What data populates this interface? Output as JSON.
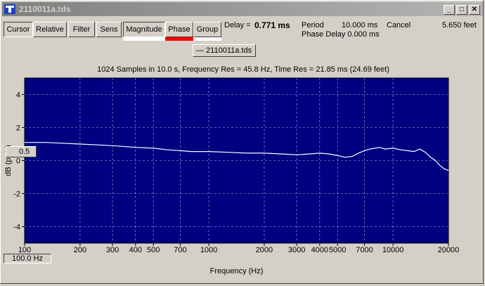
{
  "window": {
    "title": "2110011a.tds",
    "minimize": "_",
    "maximize": "□",
    "close": "✕"
  },
  "toolbar": {
    "buttons": [
      {
        "label": "Cursor"
      },
      {
        "label": "Relative"
      },
      {
        "label": "Filter"
      },
      {
        "label": "Sens"
      },
      {
        "label": "Magnitude"
      },
      {
        "label": "Phase"
      },
      {
        "label": "Group"
      }
    ],
    "indicator_colors": {
      "magnitude": "#ffffff",
      "phase": "#ff0000",
      "group": "#ffffff"
    }
  },
  "readouts": {
    "delay_label": "Delay =",
    "delay_value": "0.771 ms",
    "period_label": "Period",
    "period_value": "10.000 ms",
    "cancel": "Cancel",
    "feet": "5.650 feet",
    "phase_delay": "Phase Delay 0.000 ms"
  },
  "legend": {
    "entry": "— 2110011a.tds"
  },
  "plot_info": "1024 Samples in 10.0 s, Frequency Res = 45.8 Hz, Time Res = 21.85 ms (24.69 feet)",
  "cursor_readout": "0.5",
  "freq_readout": "100.0 Hz",
  "chart_data": {
    "type": "line",
    "xlabel": "Frequency (Hz)",
    "ylabel": "dB (pa/s)",
    "x_scale": "log",
    "xlim": [
      100,
      20000
    ],
    "ylim": [
      -5,
      5
    ],
    "x_ticks": [
      100,
      200,
      300,
      400,
      500,
      700,
      1000,
      2000,
      3000,
      4000,
      5000,
      7000,
      10000,
      20000
    ],
    "x_tick_labels": [
      "100",
      "200",
      "300",
      "400",
      "500",
      "700",
      "1000",
      "2000",
      "3000",
      "4000",
      "5000",
      "7000",
      "10000",
      "20000"
    ],
    "y_ticks": [
      4,
      2,
      0,
      -2,
      -4
    ],
    "y_tick_labels": [
      "4",
      "2",
      "0",
      "-2",
      "-4"
    ],
    "grid": true,
    "background": "#000080",
    "line_color": "#ffffff",
    "series": [
      {
        "x": [
          100,
          130,
          160,
          200,
          250,
          300,
          400,
          500,
          600,
          700,
          800,
          1000,
          1300,
          1600,
          2000,
          2500,
          3000,
          3500,
          4000,
          4500,
          5000,
          5500,
          6000,
          6500,
          7000,
          7500,
          8000,
          8500,
          9000,
          10000,
          11000,
          12000,
          13000,
          14000,
          15000,
          16000,
          17000,
          18000,
          19000,
          20000
        ],
        "y": [
          1.1,
          1.1,
          1.05,
          1.0,
          0.95,
          0.9,
          0.8,
          0.75,
          0.65,
          0.6,
          0.55,
          0.55,
          0.5,
          0.45,
          0.45,
          0.4,
          0.35,
          0.4,
          0.45,
          0.4,
          0.3,
          0.2,
          0.25,
          0.45,
          0.6,
          0.7,
          0.75,
          0.8,
          0.7,
          0.75,
          0.65,
          0.6,
          0.55,
          0.7,
          0.5,
          0.2,
          0.0,
          -0.3,
          -0.5,
          -0.6
        ]
      }
    ]
  }
}
